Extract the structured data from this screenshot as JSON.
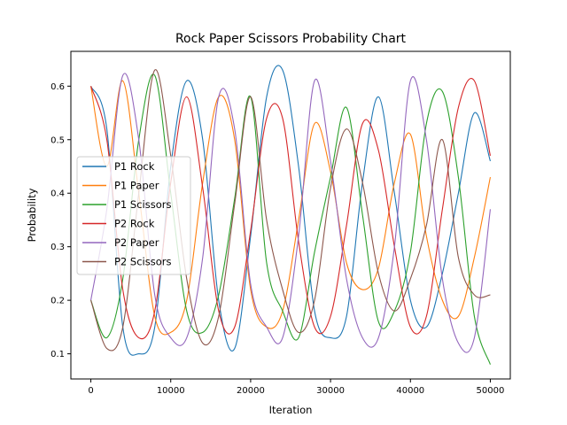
{
  "chart_data": {
    "type": "line",
    "title": "Rock Paper Scissors Probability Chart",
    "xlabel": "Iteration",
    "ylabel": "Probability",
    "xlim": [
      -2500,
      52500
    ],
    "ylim": [
      0.053,
      0.665
    ],
    "xticks": [
      0,
      10000,
      20000,
      30000,
      40000,
      50000
    ],
    "xtick_labels": [
      "0",
      "10000",
      "20000",
      "30000",
      "40000",
      "50000"
    ],
    "yticks": [
      0.1,
      0.2,
      0.3,
      0.4,
      0.5,
      0.6
    ],
    "ytick_labels": [
      "0.1",
      "0.2",
      "0.3",
      "0.4",
      "0.5",
      "0.6"
    ],
    "grid": false,
    "legend_position": "center-left",
    "x": [
      0,
      2000,
      4000,
      6000,
      8000,
      10000,
      12000,
      14000,
      16000,
      18000,
      20000,
      22000,
      24000,
      26000,
      28000,
      30000,
      32000,
      34000,
      36000,
      38000,
      40000,
      42000,
      44000,
      46000,
      48000,
      50000
    ],
    "series": [
      {
        "name": "P1 Rock",
        "color": "#1f77b4",
        "values": [
          0.6,
          0.52,
          0.15,
          0.1,
          0.15,
          0.45,
          0.61,
          0.5,
          0.2,
          0.11,
          0.32,
          0.58,
          0.63,
          0.45,
          0.18,
          0.13,
          0.17,
          0.42,
          0.58,
          0.4,
          0.2,
          0.15,
          0.25,
          0.4,
          0.55,
          0.46
        ]
      },
      {
        "name": "P1 Paper",
        "color": "#ff7f0e",
        "values": [
          0.6,
          0.45,
          0.61,
          0.4,
          0.17,
          0.14,
          0.2,
          0.42,
          0.58,
          0.5,
          0.22,
          0.15,
          0.18,
          0.35,
          0.53,
          0.44,
          0.27,
          0.22,
          0.26,
          0.42,
          0.51,
          0.32,
          0.2,
          0.17,
          0.28,
          0.43
        ]
      },
      {
        "name": "P1 Scissors",
        "color": "#2ca02c",
        "values": [
          0.2,
          0.13,
          0.24,
          0.5,
          0.62,
          0.4,
          0.18,
          0.14,
          0.21,
          0.39,
          0.58,
          0.27,
          0.18,
          0.13,
          0.29,
          0.43,
          0.56,
          0.36,
          0.16,
          0.18,
          0.29,
          0.53,
          0.59,
          0.43,
          0.17,
          0.08
        ]
      },
      {
        "name": "P2 Rock",
        "color": "#d62728",
        "values": [
          0.6,
          0.5,
          0.22,
          0.13,
          0.18,
          0.42,
          0.58,
          0.41,
          0.18,
          0.15,
          0.33,
          0.54,
          0.54,
          0.31,
          0.15,
          0.17,
          0.34,
          0.53,
          0.48,
          0.3,
          0.15,
          0.17,
          0.37,
          0.56,
          0.61,
          0.47
        ]
      },
      {
        "name": "P2 Paper",
        "color": "#9467bd",
        "values": [
          0.2,
          0.37,
          0.62,
          0.5,
          0.21,
          0.13,
          0.13,
          0.28,
          0.58,
          0.52,
          0.23,
          0.15,
          0.13,
          0.32,
          0.61,
          0.46,
          0.24,
          0.13,
          0.13,
          0.3,
          0.61,
          0.5,
          0.24,
          0.12,
          0.13,
          0.37
        ]
      },
      {
        "name": "P2 Scissors",
        "color": "#8c564b",
        "values": [
          0.2,
          0.11,
          0.15,
          0.4,
          0.63,
          0.47,
          0.24,
          0.12,
          0.17,
          0.38,
          0.58,
          0.35,
          0.22,
          0.14,
          0.2,
          0.41,
          0.52,
          0.42,
          0.25,
          0.18,
          0.24,
          0.34,
          0.5,
          0.28,
          0.21,
          0.21
        ]
      }
    ]
  }
}
